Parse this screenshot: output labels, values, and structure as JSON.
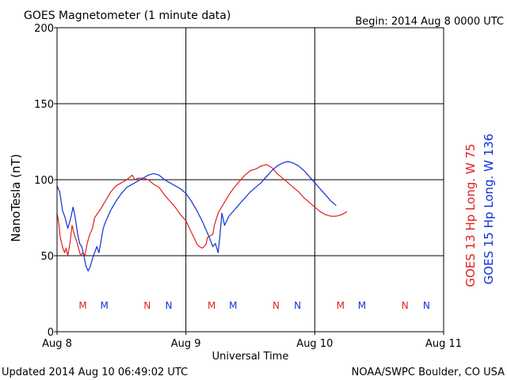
{
  "header": {
    "title": "GOES Magnetometer (1 minute data)",
    "begin": "Begin:  2014 Aug 8 0000 UTC"
  },
  "footer": {
    "updated": "Updated 2014 Aug 10 06:49:02 UTC",
    "credit": "NOAA/SWPC Boulder, CO USA"
  },
  "chart_data": {
    "type": "line",
    "xlabel": "Universal Time",
    "ylabel": "NanoTesla (nT)",
    "xlim": [
      0,
      72
    ],
    "ylim": [
      0,
      200
    ],
    "grid": true,
    "x_ticks": [
      {
        "label": "Aug 8",
        "x": 0
      },
      {
        "label": "Aug 9",
        "x": 24
      },
      {
        "label": "Aug 10",
        "x": 48
      },
      {
        "label": "Aug 11",
        "x": 72
      }
    ],
    "y_ticks": [
      0,
      50,
      100,
      150,
      200
    ],
    "legend_position": "right-vertical",
    "series": [
      {
        "name": "GOES 13 Hp  Long. W 75",
        "color": "#e0201e",
        "points": [
          [
            0,
            78
          ],
          [
            0.3,
            72
          ],
          [
            0.6,
            62
          ],
          [
            1,
            56
          ],
          [
            1.4,
            52
          ],
          [
            1.7,
            55
          ],
          [
            2,
            50
          ],
          [
            2.4,
            58
          ],
          [
            2.8,
            70
          ],
          [
            3.2,
            64
          ],
          [
            3.6,
            60
          ],
          [
            4,
            55
          ],
          [
            4.4,
            50
          ],
          [
            4.8,
            52
          ],
          [
            5.2,
            50
          ],
          [
            5.6,
            58
          ],
          [
            6,
            63
          ],
          [
            6.6,
            68
          ],
          [
            7,
            75
          ],
          [
            8,
            80
          ],
          [
            9,
            86
          ],
          [
            10,
            92
          ],
          [
            11,
            96
          ],
          [
            12,
            98
          ],
          [
            13,
            100
          ],
          [
            14,
            103
          ],
          [
            14.5,
            100
          ],
          [
            15,
            101
          ],
          [
            16,
            101
          ],
          [
            17,
            100
          ],
          [
            18,
            97
          ],
          [
            19,
            95
          ],
          [
            20,
            90
          ],
          [
            21,
            86
          ],
          [
            22,
            82
          ],
          [
            23,
            77
          ],
          [
            24,
            73
          ],
          [
            24.8,
            67
          ],
          [
            25.5,
            62
          ],
          [
            26,
            58
          ],
          [
            26.5,
            56
          ],
          [
            27,
            55
          ],
          [
            27.4,
            56
          ],
          [
            27.8,
            58
          ],
          [
            28,
            62
          ],
          [
            28.5,
            63
          ],
          [
            29,
            64
          ],
          [
            29.3,
            70
          ],
          [
            30,
            78
          ],
          [
            31,
            84
          ],
          [
            32,
            90
          ],
          [
            33,
            95
          ],
          [
            34,
            99
          ],
          [
            35,
            103
          ],
          [
            36,
            106
          ],
          [
            37,
            107
          ],
          [
            38,
            109
          ],
          [
            39,
            110
          ],
          [
            40,
            108
          ],
          [
            41,
            104
          ],
          [
            42,
            101
          ],
          [
            43,
            98
          ],
          [
            44,
            95
          ],
          [
            45,
            92
          ],
          [
            46,
            88
          ],
          [
            47,
            85
          ],
          [
            48,
            82
          ],
          [
            49,
            79
          ],
          [
            50,
            77
          ],
          [
            51,
            76
          ],
          [
            52,
            76
          ],
          [
            53,
            77
          ],
          [
            54,
            79
          ]
        ]
      },
      {
        "name": "GOES 15 Hp  Long. W 136",
        "color": "#1030d8",
        "points": [
          [
            0,
            96
          ],
          [
            0.5,
            92
          ],
          [
            1,
            80
          ],
          [
            1.5,
            75
          ],
          [
            2,
            68
          ],
          [
            2.5,
            74
          ],
          [
            3,
            82
          ],
          [
            3.4,
            75
          ],
          [
            3.8,
            65
          ],
          [
            4.2,
            58
          ],
          [
            4.6,
            56
          ],
          [
            5,
            50
          ],
          [
            5.4,
            43
          ],
          [
            5.8,
            40
          ],
          [
            6.2,
            43
          ],
          [
            6.6,
            48
          ],
          [
            7,
            52
          ],
          [
            7.4,
            56
          ],
          [
            7.8,
            52
          ],
          [
            8.2,
            60
          ],
          [
            8.6,
            68
          ],
          [
            9,
            72
          ],
          [
            10,
            80
          ],
          [
            11,
            86
          ],
          [
            12,
            91
          ],
          [
            13,
            95
          ],
          [
            14,
            97
          ],
          [
            15,
            99
          ],
          [
            16,
            101
          ],
          [
            17,
            103
          ],
          [
            18,
            104
          ],
          [
            19,
            103
          ],
          [
            20,
            100
          ],
          [
            21,
            98
          ],
          [
            22,
            96
          ],
          [
            23,
            94
          ],
          [
            24,
            91
          ],
          [
            25,
            86
          ],
          [
            26,
            80
          ],
          [
            27,
            73
          ],
          [
            28,
            65
          ],
          [
            28.6,
            60
          ],
          [
            29,
            56
          ],
          [
            29.5,
            58
          ],
          [
            30,
            52
          ],
          [
            30.3,
            62
          ],
          [
            30.7,
            78
          ],
          [
            31.2,
            70
          ],
          [
            32,
            76
          ],
          [
            33,
            80
          ],
          [
            34,
            84
          ],
          [
            35,
            88
          ],
          [
            36,
            92
          ],
          [
            37,
            95
          ],
          [
            38,
            98
          ],
          [
            39,
            102
          ],
          [
            40,
            106
          ],
          [
            41,
            109
          ],
          [
            42,
            111
          ],
          [
            43,
            112
          ],
          [
            44,
            111
          ],
          [
            45,
            109
          ],
          [
            46,
            106
          ],
          [
            47,
            102
          ],
          [
            48,
            98
          ],
          [
            49,
            94
          ],
          [
            50,
            90
          ],
          [
            51,
            86
          ],
          [
            52,
            83
          ]
        ]
      }
    ],
    "markers": [
      {
        "label": "M",
        "x": 4.8,
        "color": "#e0201e"
      },
      {
        "label": "M",
        "x": 8.8,
        "color": "#1030d8"
      },
      {
        "label": "N",
        "x": 16.8,
        "color": "#e0201e"
      },
      {
        "label": "N",
        "x": 20.8,
        "color": "#1030d8"
      },
      {
        "label": "M",
        "x": 28.8,
        "color": "#e0201e"
      },
      {
        "label": "M",
        "x": 32.8,
        "color": "#1030d8"
      },
      {
        "label": "N",
        "x": 40.8,
        "color": "#e0201e"
      },
      {
        "label": "N",
        "x": 44.8,
        "color": "#1030d8"
      },
      {
        "label": "M",
        "x": 52.8,
        "color": "#e0201e"
      },
      {
        "label": "M",
        "x": 56.8,
        "color": "#1030d8"
      },
      {
        "label": "N",
        "x": 64.8,
        "color": "#e0201e"
      },
      {
        "label": "N",
        "x": 68.8,
        "color": "#1030d8"
      }
    ]
  }
}
